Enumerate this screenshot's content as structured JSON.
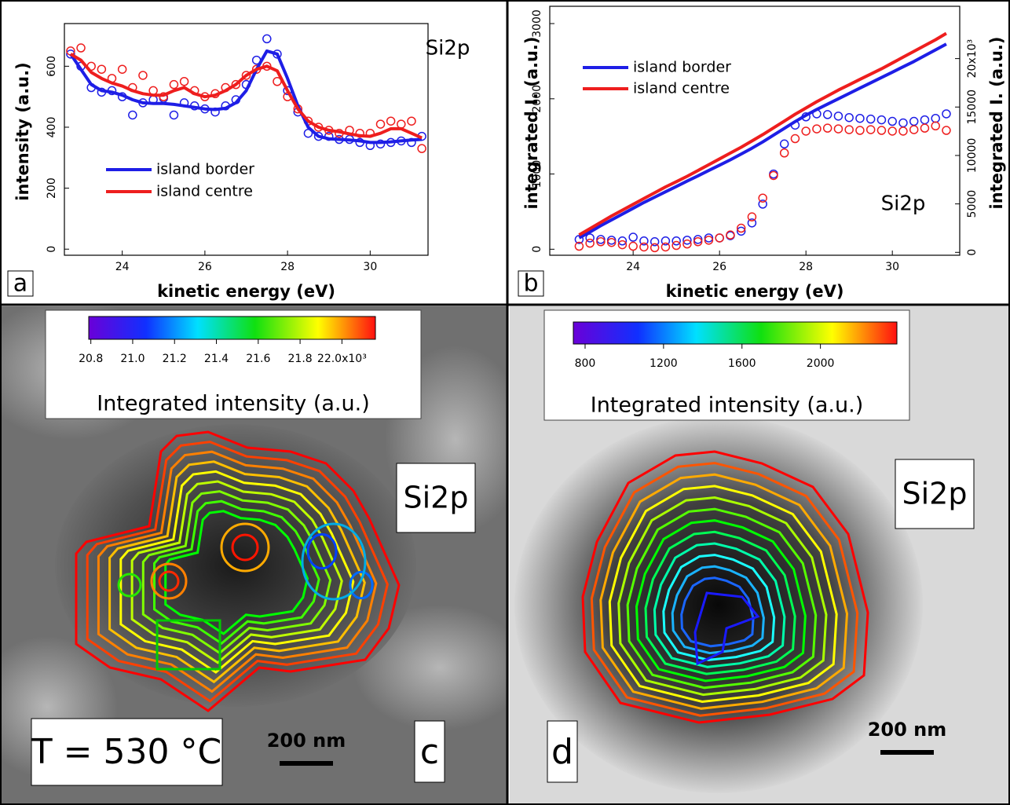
{
  "chart_data": [
    {
      "type": "line",
      "panel_label": "a",
      "annotation": "Si2p",
      "x_label": "kinetic energy (eV)",
      "y_label": "intensity (a.u.)",
      "x": [
        22.75,
        23.0,
        23.25,
        23.5,
        23.75,
        24.0,
        24.25,
        24.5,
        24.75,
        25.0,
        25.25,
        25.5,
        25.75,
        26.0,
        26.25,
        26.5,
        26.75,
        27.0,
        27.25,
        27.5,
        27.75,
        28.0,
        28.25,
        28.5,
        28.75,
        29.0,
        29.25,
        29.5,
        29.75,
        30.0,
        30.25,
        30.5,
        30.75,
        31.0,
        31.25
      ],
      "xlim": [
        22.6,
        31.4
      ],
      "xticks": [
        24,
        26,
        28,
        30
      ],
      "ylim": [
        -20,
        740
      ],
      "yticks": [
        0,
        200,
        400,
        600
      ],
      "series": [
        {
          "name": "island border",
          "color": "#1e1ee6",
          "values": [
            640,
            590,
            540,
            520,
            515,
            505,
            490,
            480,
            478,
            478,
            475,
            470,
            465,
            460,
            458,
            462,
            480,
            520,
            590,
            650,
            640,
            560,
            470,
            400,
            370,
            362,
            360,
            358,
            355,
            350,
            350,
            352,
            355,
            358,
            360
          ]
        },
        {
          "name": "island centre",
          "color": "#ee1e1e",
          "values": [
            640,
            620,
            580,
            560,
            545,
            535,
            520,
            510,
            505,
            505,
            520,
            530,
            510,
            500,
            505,
            520,
            540,
            570,
            590,
            600,
            585,
            520,
            460,
            420,
            400,
            390,
            385,
            378,
            372,
            370,
            380,
            395,
            395,
            380,
            365
          ]
        }
      ],
      "points": [
        {
          "color": "#1e1ee6",
          "values": [
            640,
            600,
            530,
            515,
            520,
            500,
            440,
            480,
            490,
            495,
            440,
            480,
            470,
            460,
            450,
            470,
            490,
            540,
            620,
            690,
            640,
            520,
            450,
            380,
            370,
            370,
            360,
            360,
            350,
            340,
            345,
            350,
            355,
            350,
            370
          ]
        },
        {
          "color": "#ee1e1e",
          "values": [
            650,
            660,
            600,
            590,
            560,
            590,
            530,
            570,
            520,
            500,
            540,
            550,
            520,
            500,
            510,
            530,
            540,
            570,
            590,
            600,
            550,
            500,
            460,
            420,
            400,
            390,
            380,
            390,
            380,
            380,
            410,
            420,
            410,
            420,
            330
          ]
        }
      ]
    },
    {
      "type": "line",
      "panel_label": "b",
      "annotation": "Si2p",
      "x_label": "kinetic energy (eV)",
      "y_label": "integrated I. (a.u.)",
      "y2_label": "integrated I. (a.u.)",
      "x": [
        22.75,
        23.0,
        23.25,
        23.5,
        23.75,
        24.0,
        24.25,
        24.5,
        24.75,
        25.0,
        25.25,
        25.5,
        25.75,
        26.0,
        26.25,
        26.5,
        26.75,
        27.0,
        27.25,
        27.5,
        27.75,
        28.0,
        28.25,
        28.5,
        28.75,
        29.0,
        29.25,
        29.5,
        29.75,
        30.0,
        30.25,
        30.5,
        30.75,
        31.0,
        31.25
      ],
      "xlim": [
        22.07,
        31.56
      ],
      "xticks": [
        24,
        26,
        28,
        30
      ],
      "ylim": [
        -80,
        3230
      ],
      "yticks": [
        0,
        1000,
        2000,
        3000
      ],
      "y2lim": [
        -300,
        25400
      ],
      "y2ticks": [
        0,
        5000,
        10000,
        15000,
        {
          "value": 20000,
          "label": "20x10³"
        }
      ],
      "series": [
        {
          "name": "island border",
          "color": "#1e1ee6",
          "axis": "y2",
          "values": [
            1500,
            2100,
            2750,
            3350,
            3950,
            4550,
            5150,
            5700,
            6250,
            6800,
            7350,
            7900,
            8450,
            9000,
            9550,
            10150,
            10750,
            11400,
            12100,
            12800,
            13500,
            14150,
            14750,
            15300,
            15850,
            16400,
            16950,
            17500,
            18050,
            18600,
            19150,
            19700,
            20300,
            20900,
            21500
          ]
        },
        {
          "name": "island centre",
          "color": "#ee1e1e",
          "axis": "y2",
          "values": [
            1800,
            2450,
            3100,
            3750,
            4350,
            4950,
            5550,
            6150,
            6750,
            7300,
            7850,
            8450,
            9050,
            9650,
            10250,
            10850,
            11500,
            12150,
            12850,
            13550,
            14250,
            14900,
            15550,
            16150,
            16750,
            17300,
            17850,
            18400,
            18950,
            19550,
            20150,
            20750,
            21350,
            21950,
            22600
          ]
        }
      ],
      "points": [
        {
          "color": "#1e1ee6",
          "values": [
            130,
            150,
            130,
            120,
            110,
            160,
            110,
            100,
            110,
            110,
            120,
            130,
            150,
            150,
            180,
            240,
            350,
            600,
            1000,
            1400,
            1650,
            1760,
            1800,
            1790,
            1770,
            1750,
            1740,
            1730,
            1720,
            1700,
            1680,
            1700,
            1720,
            1740,
            1800
          ]
        },
        {
          "color": "#ee1e1e",
          "values": [
            40,
            80,
            100,
            90,
            60,
            40,
            30,
            20,
            30,
            50,
            70,
            100,
            120,
            150,
            190,
            280,
            430,
            680,
            980,
            1280,
            1470,
            1570,
            1600,
            1610,
            1600,
            1590,
            1580,
            1590,
            1580,
            1570,
            1570,
            1590,
            1610,
            1640,
            1580
          ]
        }
      ]
    },
    {
      "type": "image",
      "panel_label": "c",
      "annotation": "Si2p",
      "temperature": "T = 530 °C",
      "scale_bar": "200 nm",
      "colorbar": {
        "label": "Integrated intensity (a.u.)",
        "lim": [
          20790,
          22160
        ],
        "ticks": [
          {
            "value": 20800,
            "label": "20.8"
          },
          {
            "value": 21000,
            "label": "21.0"
          },
          {
            "value": 21200,
            "label": "21.2"
          },
          {
            "value": 21400,
            "label": "21.4"
          },
          {
            "value": 21600,
            "label": "21.6"
          },
          {
            "value": 21800,
            "label": "21.8"
          },
          {
            "value": 22000,
            "label": "22.0x10³"
          }
        ]
      }
    },
    {
      "type": "image",
      "panel_label": "d",
      "annotation": "Si2p",
      "scale_bar": "200 nm",
      "colorbar": {
        "label": "Integrated intensity (a.u.)",
        "lim": [
          740,
          2390
        ],
        "ticks": [
          800,
          1200,
          1600,
          2000
        ]
      }
    }
  ]
}
